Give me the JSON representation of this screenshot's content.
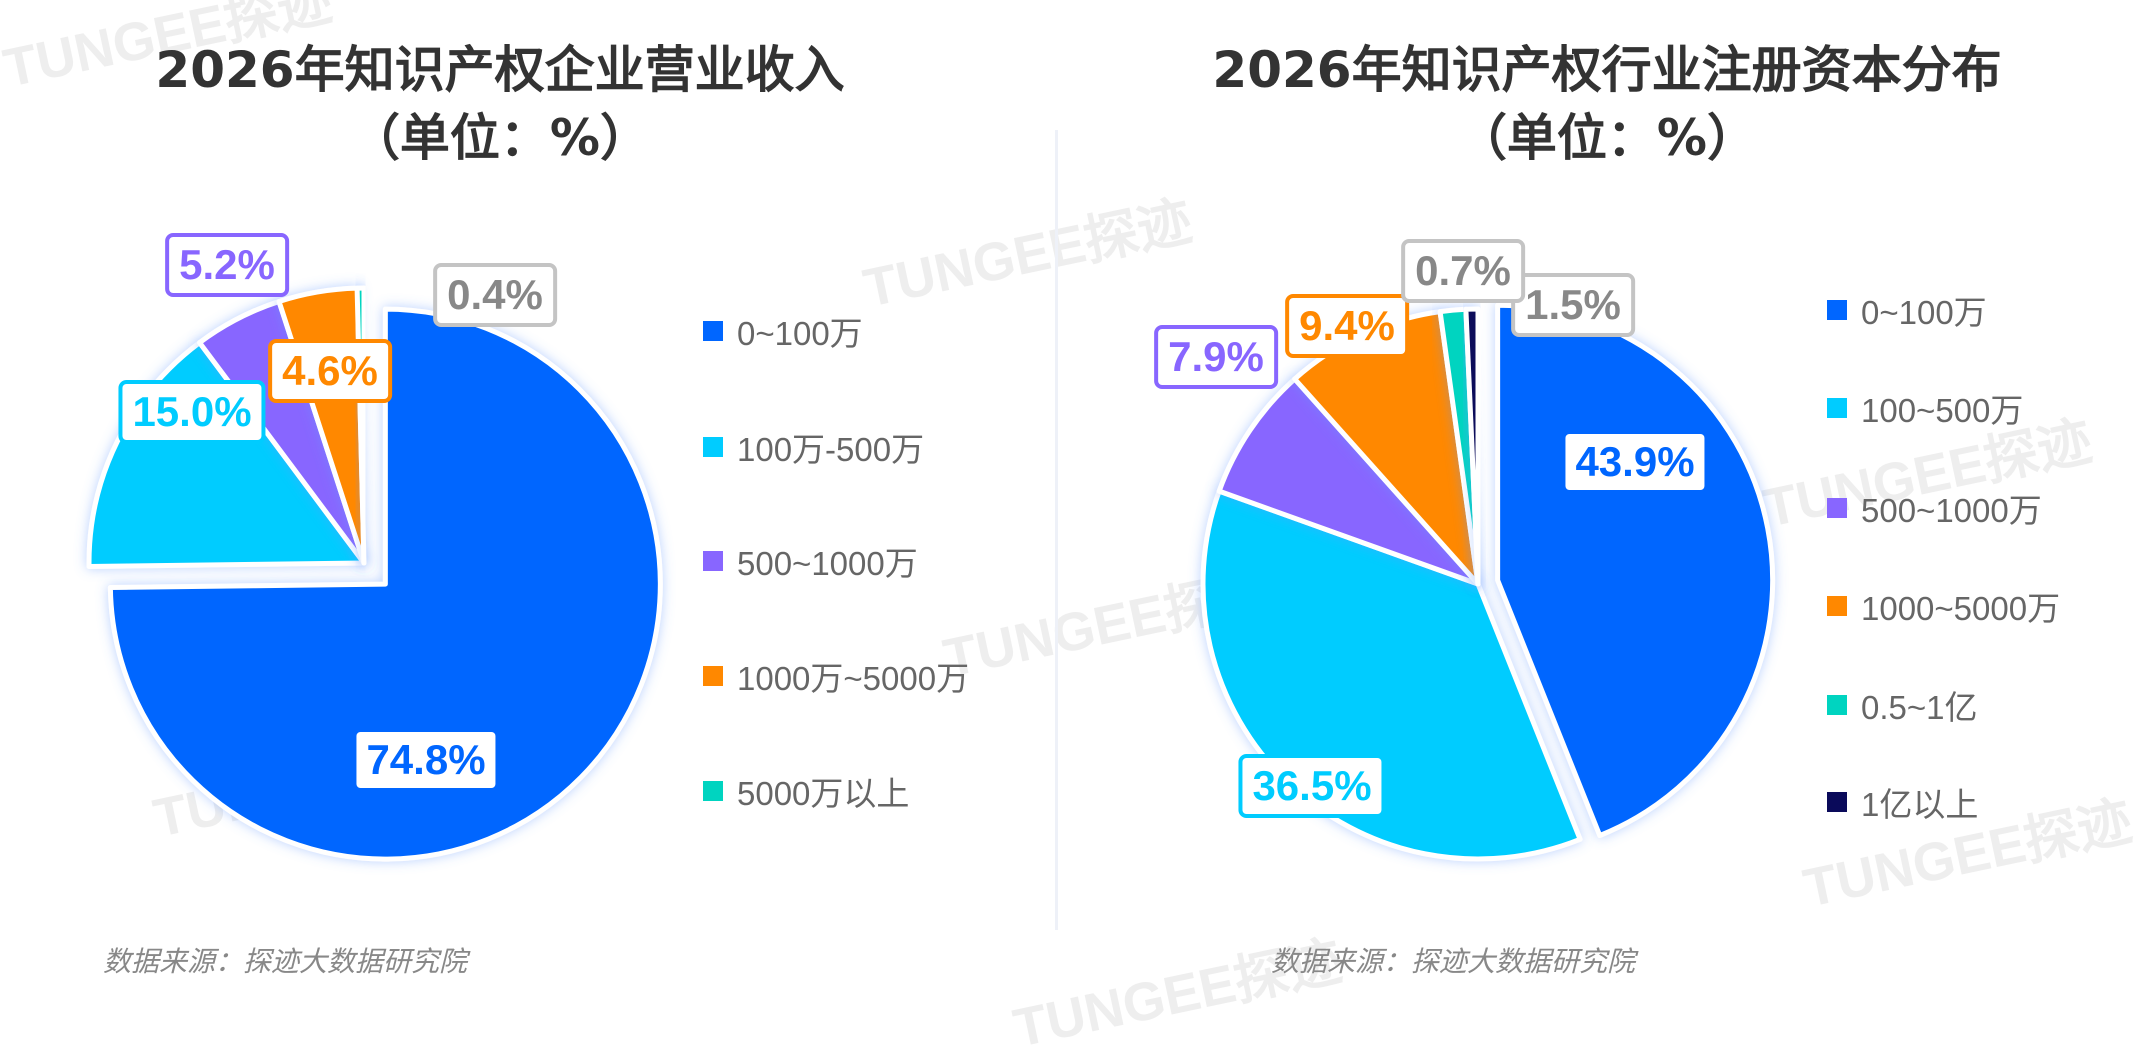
{
  "watermark": "TUNGEE探迹",
  "source_left": "数据来源：探迹大数据研究院",
  "source_right": "数据来源：探迹大数据研究院",
  "chart_data": [
    {
      "type": "pie",
      "title": "2026年知识产权企业营业收入",
      "subtitle": "（单位：%）",
      "legend_position": "right",
      "categories": [
        "0~100万",
        "100万-500万",
        "500~1000万",
        "1000万~5000万",
        "5000万以上"
      ],
      "values": [
        74.8,
        15.0,
        5.2,
        4.6,
        0.4
      ],
      "labels": [
        "74.8%",
        "15.0%",
        "5.2%",
        "4.6%",
        "0.4%"
      ],
      "colors": [
        "#0066ff",
        "#00ccff",
        "#8866ff",
        "#ff8800",
        "#00d4c0"
      ],
      "label_colors": [
        "#0066ff",
        "#00ccff",
        "#8866ff",
        "#ff8800",
        "#888888"
      ]
    },
    {
      "type": "pie",
      "title": "2026年知识产权行业注册资本分布",
      "subtitle": "（单位：%）",
      "legend_position": "right",
      "categories": [
        "0~100万",
        "100~500万",
        "500~1000万",
        "1000~5000万",
        "0.5~1亿",
        "1亿以上"
      ],
      "values": [
        43.9,
        36.5,
        7.9,
        9.4,
        1.5,
        0.7
      ],
      "labels": [
        "43.9%",
        "36.5%",
        "7.9%",
        "9.4%",
        "1.5%",
        "0.7%"
      ],
      "colors": [
        "#0066ff",
        "#00ccff",
        "#8866ff",
        "#ff8800",
        "#00d4c0",
        "#0a0a5a"
      ],
      "label_colors": [
        "#0066ff",
        "#00ccff",
        "#8866ff",
        "#ff8800",
        "#888888",
        "#888888"
      ]
    }
  ]
}
